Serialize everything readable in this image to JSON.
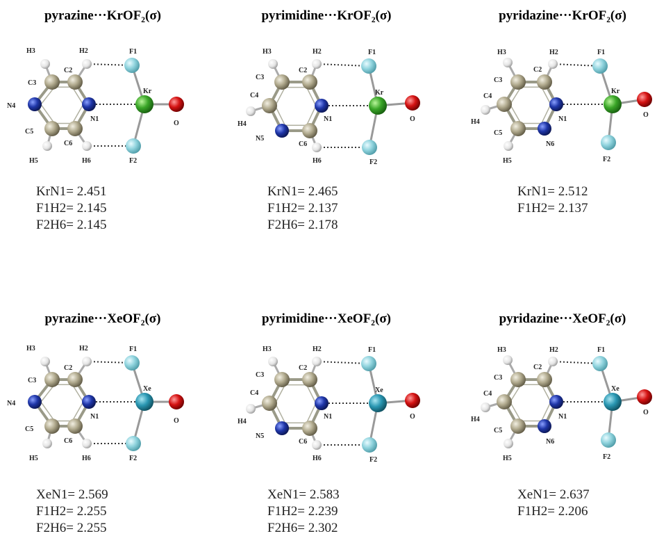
{
  "panels": [
    {
      "title": "pyrazine···KrOF₂(σ)",
      "atoms": [
        "C2",
        "C3",
        "N4",
        "C5",
        "C6",
        "N1",
        "H2",
        "H3",
        "H5",
        "H6",
        "Kr",
        "F1",
        "F2",
        "O"
      ],
      "distances": [
        "KrN1= 2.451",
        "F1H2= 2.145",
        "F2H6= 2.145"
      ]
    },
    {
      "title": "pyrimidine···KrOF₂(σ)",
      "atoms": [
        "C2",
        "C3",
        "C4",
        "N5",
        "C6",
        "N1",
        "H2",
        "H3",
        "H4",
        "H6",
        "Kr",
        "F1",
        "F2",
        "O"
      ],
      "distances": [
        "KrN1= 2.465",
        "F1H2= 2.137",
        "F2H6= 2.178"
      ]
    },
    {
      "title": "pyridazine···KrOF₂(σ)",
      "atoms": [
        "C2",
        "C3",
        "C4",
        "C5",
        "N6",
        "N1",
        "H2",
        "H3",
        "H4",
        "H5",
        "Kr",
        "F1",
        "F2",
        "O"
      ],
      "distances": [
        "KrN1= 2.512",
        "F1H2= 2.137"
      ]
    },
    {
      "title": "pyrazine···XeOF₂(σ)",
      "atoms": [
        "C2",
        "C3",
        "N4",
        "C5",
        "C6",
        "N1",
        "H2",
        "H3",
        "H5",
        "H6",
        "Xe",
        "F1",
        "F2",
        "O"
      ],
      "distances": [
        "XeN1= 2.569",
        "F1H2= 2.255",
        "F2H6= 2.255"
      ]
    },
    {
      "title": "pyrimidine···XeOF₂(σ)",
      "atoms": [
        "C2",
        "C3",
        "C4",
        "N5",
        "C6",
        "N1",
        "H2",
        "H3",
        "H4",
        "H6",
        "Xe",
        "F1",
        "F2",
        "O"
      ],
      "distances": [
        "XeN1= 2.583",
        "F1H2= 2.239",
        "F2H6= 2.302"
      ]
    },
    {
      "title": "pyridazine···XeOF₂(σ)",
      "atoms": [
        "C2",
        "C3",
        "C4",
        "C5",
        "N6",
        "N1",
        "H2",
        "H3",
        "H4",
        "H5",
        "Xe",
        "F1",
        "F2",
        "O"
      ],
      "distances": [
        "XeN1= 2.637",
        "F1H2= 2.206"
      ]
    }
  ]
}
